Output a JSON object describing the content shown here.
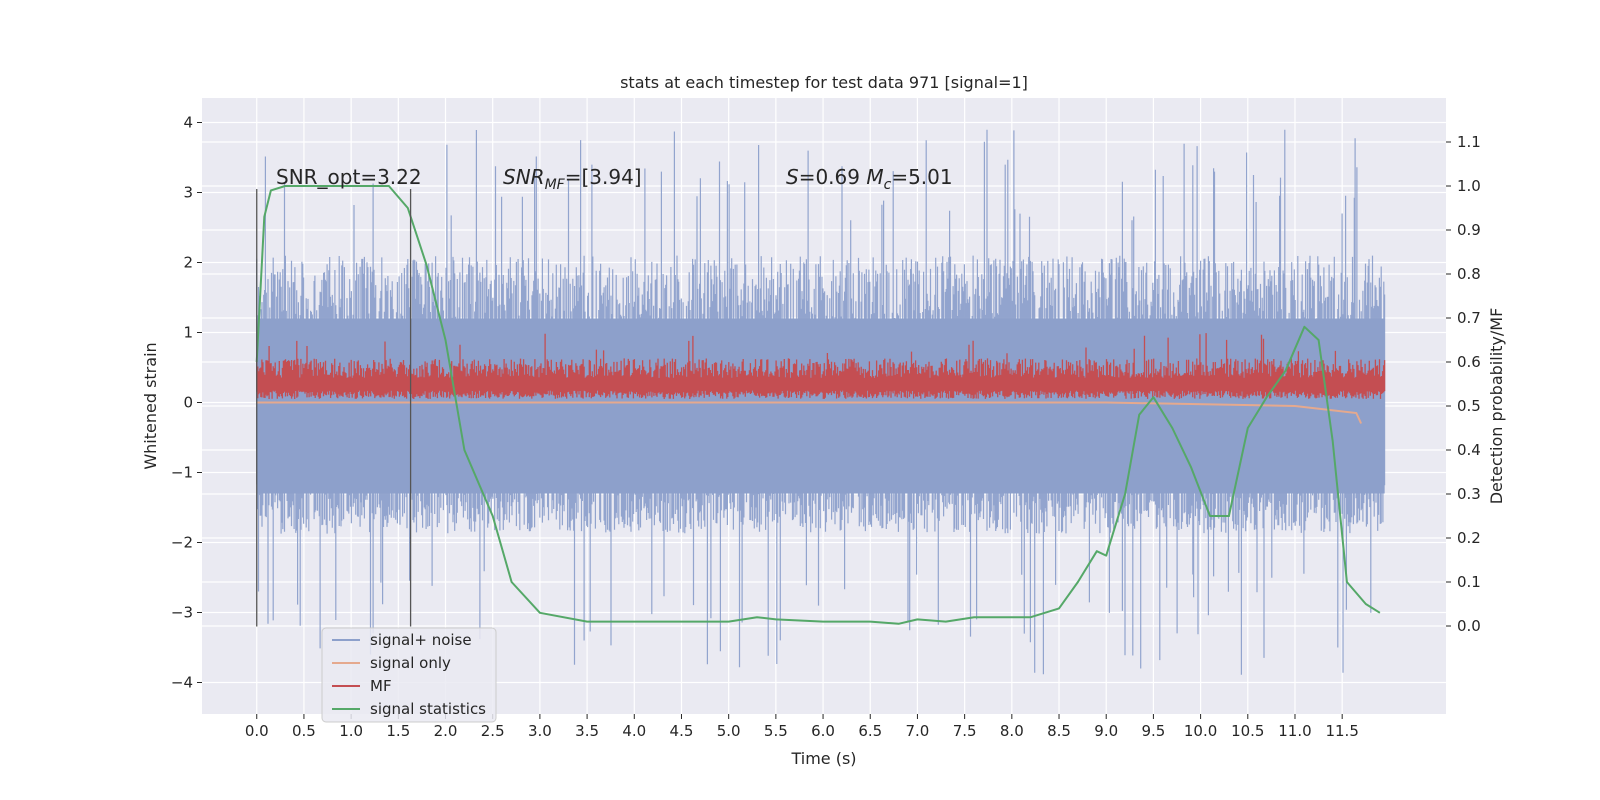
{
  "chart_data": {
    "type": "line",
    "title": "stats at each timestep for test data 971 [signal=1]",
    "xlabel": "Time (s)",
    "ylabel_left": "Whitened strain",
    "ylabel_right": "Detection probability/MF",
    "xlim": [
      -0.58,
      12.6
    ],
    "ylim_left": [
      -4.45,
      4.35
    ],
    "ylim_right": [
      -0.2,
      1.2
    ],
    "x_ticks": [
      "0.0",
      "0.5",
      "1.0",
      "1.5",
      "2.0",
      "2.5",
      "3.0",
      "3.5",
      "4.0",
      "4.5",
      "5.0",
      "5.5",
      "6.0",
      "6.5",
      "7.0",
      "7.5",
      "8.0",
      "8.5",
      "9.0",
      "9.5",
      "10.0",
      "10.5",
      "11.0",
      "11.5"
    ],
    "y_ticks_left": [
      "−4",
      "−3",
      "−2",
      "−1",
      "0",
      "1",
      "2",
      "3",
      "4"
    ],
    "y_ticks_right": [
      "0.0",
      "0.1",
      "0.2",
      "0.3",
      "0.4",
      "0.5",
      "0.6",
      "0.7",
      "0.8",
      "0.9",
      "1.0",
      "1.1"
    ],
    "grid": true,
    "legend_location": "lower-left",
    "annotations": {
      "snr_opt": "SNR_opt=3.22",
      "snr_mf": "SNR_MF=[3.94]",
      "s_mc": "S=0.69   Mc=5.01"
    },
    "vertical_lines": [
      0.0,
      1.63
    ],
    "series": [
      {
        "name": "signal+ noise",
        "color": "#8da0cb",
        "axis": "left",
        "x_range": [
          0.0,
          11.95
        ],
        "envelope_typical": [
          -1.5,
          2.0
        ],
        "peak_max": 3.95,
        "peak_min": -4.05
      },
      {
        "name": "signal only",
        "color": "#e5a98e",
        "axis": "left",
        "x": [
          0.0,
          9.0,
          11.0,
          11.65,
          11.7
        ],
        "y": [
          0.0,
          0.0,
          -0.05,
          -0.15,
          -0.3
        ]
      },
      {
        "name": "MF",
        "color": "#c44e52",
        "axis": "left",
        "x_range": [
          0.0,
          11.95
        ],
        "envelope_typical": [
          0.05,
          0.6
        ],
        "peak_max": 1.0
      },
      {
        "name": "signal statistics",
        "color": "#55a868",
        "axis": "right",
        "x": [
          0.0,
          0.08,
          0.15,
          0.3,
          0.6,
          1.0,
          1.4,
          1.6,
          1.8,
          2.0,
          2.2,
          2.5,
          2.7,
          3.0,
          3.5,
          4.0,
          4.5,
          5.0,
          5.3,
          5.5,
          6.0,
          6.5,
          6.8,
          7.0,
          7.3,
          7.6,
          7.9,
          8.2,
          8.5,
          8.7,
          8.9,
          9.0,
          9.2,
          9.35,
          9.5,
          9.7,
          9.9,
          10.1,
          10.3,
          10.5,
          10.7,
          10.9,
          11.1,
          11.25,
          11.4,
          11.55,
          11.75,
          11.9
        ],
        "y": [
          0.6,
          0.93,
          0.99,
          1.0,
          1.0,
          1.0,
          1.0,
          0.95,
          0.82,
          0.65,
          0.4,
          0.25,
          0.1,
          0.03,
          0.01,
          0.01,
          0.01,
          0.01,
          0.02,
          0.015,
          0.01,
          0.01,
          0.005,
          0.015,
          0.01,
          0.02,
          0.02,
          0.02,
          0.04,
          0.1,
          0.17,
          0.16,
          0.3,
          0.48,
          0.52,
          0.45,
          0.36,
          0.25,
          0.25,
          0.45,
          0.52,
          0.58,
          0.68,
          0.65,
          0.42,
          0.1,
          0.05,
          0.03
        ]
      }
    ]
  }
}
